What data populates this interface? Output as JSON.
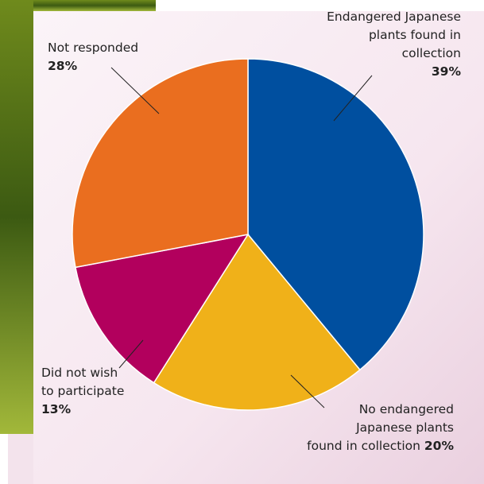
{
  "chart_data": {
    "type": "pie",
    "categories": [
      "Endangered Japanese\nplants found in\ncollection",
      "No endangered\nJapanese plants\nfound in collection",
      "Did not wish\nto participate",
      "Not responded"
    ],
    "values": [
      39,
      20,
      13,
      28
    ],
    "value_labels": [
      "39%",
      "20%",
      "13%",
      "28%"
    ],
    "colors": [
      "#004f9f",
      "#f0b119",
      "#b2005d",
      "#ea6e1f"
    ]
  }
}
